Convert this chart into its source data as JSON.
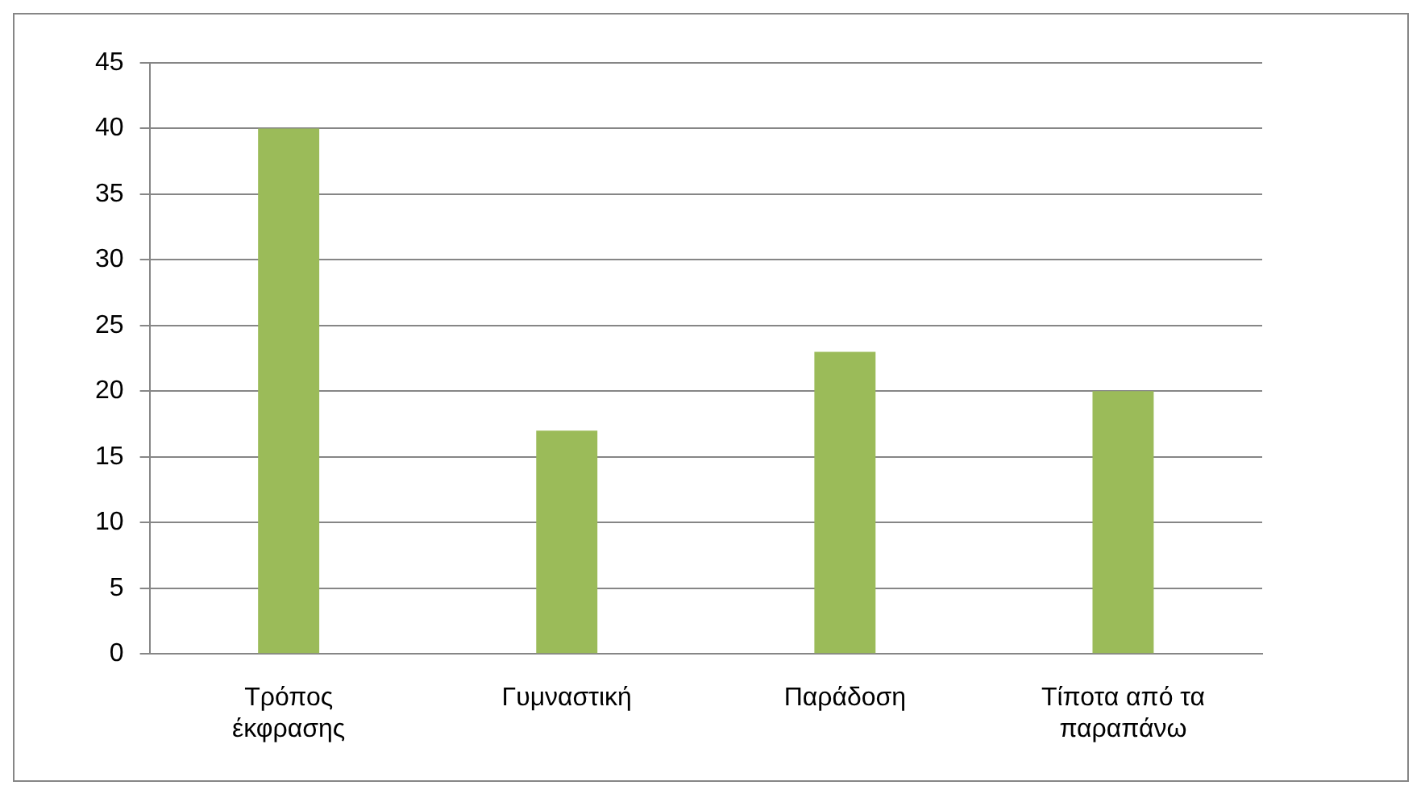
{
  "chart_data": {
    "type": "bar",
    "categories": [
      "Τρόπος έκφρασης",
      "Γυμναστική",
      "Παράδοση",
      "Τίποτα από τα παραπάνω"
    ],
    "values": [
      40,
      17,
      23,
      20
    ],
    "color": "#9bbb59",
    "ylim": [
      0,
      45
    ],
    "yticks": [
      0,
      5,
      10,
      15,
      20,
      25,
      30,
      35,
      40,
      45
    ],
    "grid": "y",
    "legend": false
  }
}
